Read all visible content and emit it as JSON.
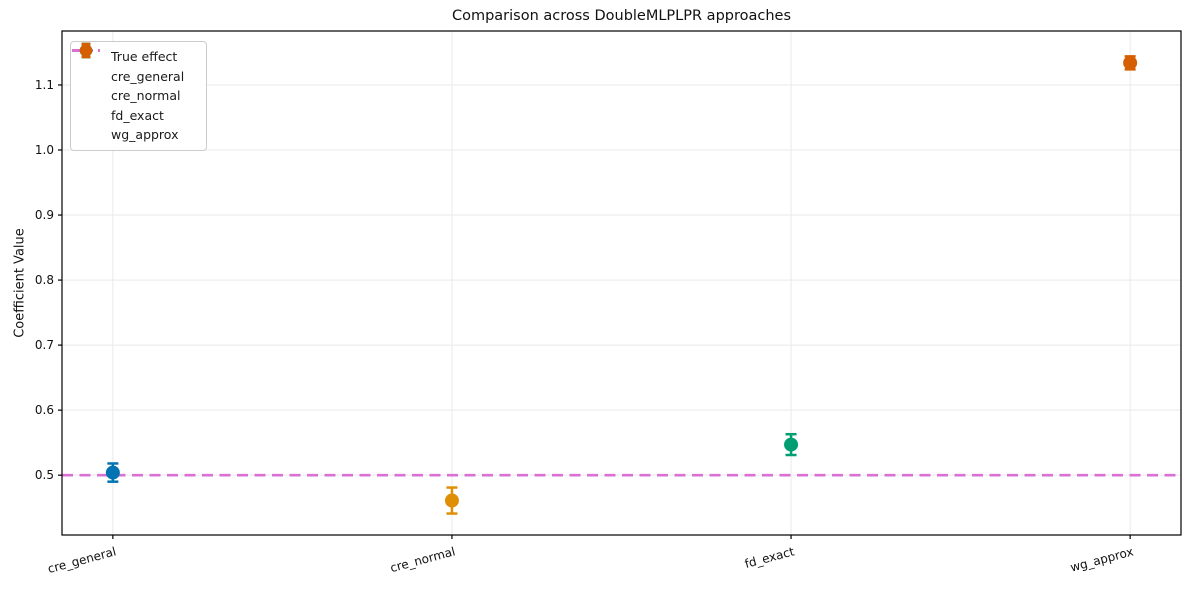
{
  "chart_data": {
    "type": "scatter",
    "title": "Comparison across DoubleMLPLPR approaches",
    "xlabel": "",
    "ylabel": "Coefficient Value",
    "categories": [
      "cre_general",
      "cre_normal",
      "fd_exact",
      "wg_approx"
    ],
    "series": [
      {
        "name": "cre_general",
        "value": 0.504,
        "error": 0.014,
        "color": "#0173B2"
      },
      {
        "name": "cre_normal",
        "value": 0.461,
        "error": 0.02,
        "color": "#DE8F05"
      },
      {
        "name": "fd_exact",
        "value": 0.547,
        "error": 0.016,
        "color": "#029E73"
      },
      {
        "name": "wg_approx",
        "value": 1.134,
        "error": 0.01,
        "color": "#D55E00"
      }
    ],
    "reference_line": {
      "label": "True effect",
      "value": 0.5,
      "color": "#DA70D6",
      "style": "dashed"
    },
    "yticks": [
      0.5,
      0.6,
      0.7,
      0.8,
      0.9,
      1.0,
      1.1
    ],
    "ylim": [
      0.408,
      1.183
    ],
    "grid": true,
    "legend_position": "upper left",
    "marker": "circle-with-error-caps",
    "axis_color": "#000000",
    "grid_color": "#e9e9e9",
    "text_color": "#111111"
  }
}
